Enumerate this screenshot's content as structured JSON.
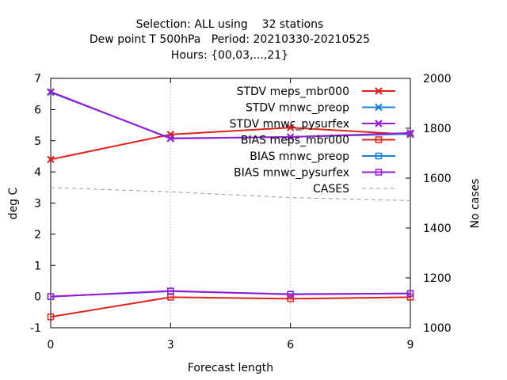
{
  "chart_data": {
    "type": "line",
    "title_lines": [
      "Selection: ALL using    32 stations",
      "Dew point T 500hPa   Period: 20210330-20210525",
      "Hours: {00,03,...,21}"
    ],
    "xlabel": "Forecast length",
    "ylabel": "deg C",
    "y2label": "No cases",
    "x": [
      0,
      3,
      6,
      9
    ],
    "xlim": [
      0,
      9
    ],
    "ylim": [
      -1,
      7
    ],
    "y2lim": [
      1000,
      2000
    ],
    "xticks": [
      "0",
      "3",
      "6",
      "9"
    ],
    "yticks": [
      "-1",
      "0",
      "1",
      "2",
      "3",
      "4",
      "5",
      "6",
      "7"
    ],
    "y2ticks": [
      "1000",
      "1200",
      "1400",
      "1600",
      "1800",
      "2000"
    ],
    "grid": "vertical dotted at x ticks",
    "legend_position": "top-right",
    "series": [
      {
        "name": "STDV meps_mbr000",
        "axis": "y1",
        "marker": "x",
        "color": "#e0201a",
        "values": [
          4.4,
          5.2,
          5.42,
          5.2
        ]
      },
      {
        "name": "STDV mnwc_preop",
        "axis": "y1",
        "marker": "x",
        "color": "#1a7fd6",
        "values": [
          6.55,
          5.08,
          5.12,
          5.22
        ]
      },
      {
        "name": "STDV mnwc_pysurfex",
        "axis": "y1",
        "marker": "x",
        "color": "#9a1ad6",
        "values": [
          6.57,
          5.07,
          5.12,
          5.25
        ]
      },
      {
        "name": "BIAS meps_mbr000",
        "axis": "y1",
        "marker": "square",
        "color": "#e0201a",
        "values": [
          -0.65,
          -0.02,
          -0.07,
          -0.02
        ]
      },
      {
        "name": "BIAS mnwc_preop",
        "axis": "y1",
        "marker": "square",
        "color": "#1a7fd6",
        "values": [
          0.0,
          0.17,
          0.08,
          0.1
        ]
      },
      {
        "name": "BIAS mnwc_pysurfex",
        "axis": "y1",
        "marker": "square",
        "color": "#9a1ad6",
        "values": [
          0.0,
          0.18,
          0.07,
          0.1
        ]
      },
      {
        "name": "CASES",
        "axis": "y2",
        "marker": "none",
        "dashed": true,
        "color": "#999999",
        "values": [
          1562,
          1545,
          1522,
          1510
        ]
      }
    ]
  }
}
